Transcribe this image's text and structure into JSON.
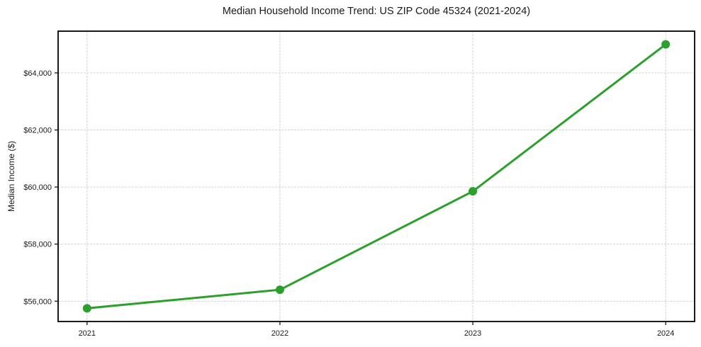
{
  "chart_data": {
    "type": "line",
    "title": "Median Household Income Trend: US ZIP Code 45324 (2021-2024)",
    "xlabel": "",
    "ylabel": "Median Income ($)",
    "categories": [
      "2021",
      "2022",
      "2023",
      "2024"
    ],
    "values": [
      55750,
      56400,
      59850,
      65000
    ],
    "y_ticks": [
      56000,
      58000,
      60000,
      62000,
      64000
    ],
    "y_tick_labels": [
      "$56,000",
      "$58,000",
      "$60,000",
      "$62,000",
      "$64,000"
    ],
    "ylim": [
      55287,
      65463
    ],
    "grid": true,
    "legend": false,
    "colors": {
      "line": "#2ca02c",
      "marker": "#2ca02c",
      "grid": "#cccccc",
      "frame": "#000000",
      "text": "#1a1a1a",
      "background": "#ffffff"
    }
  }
}
